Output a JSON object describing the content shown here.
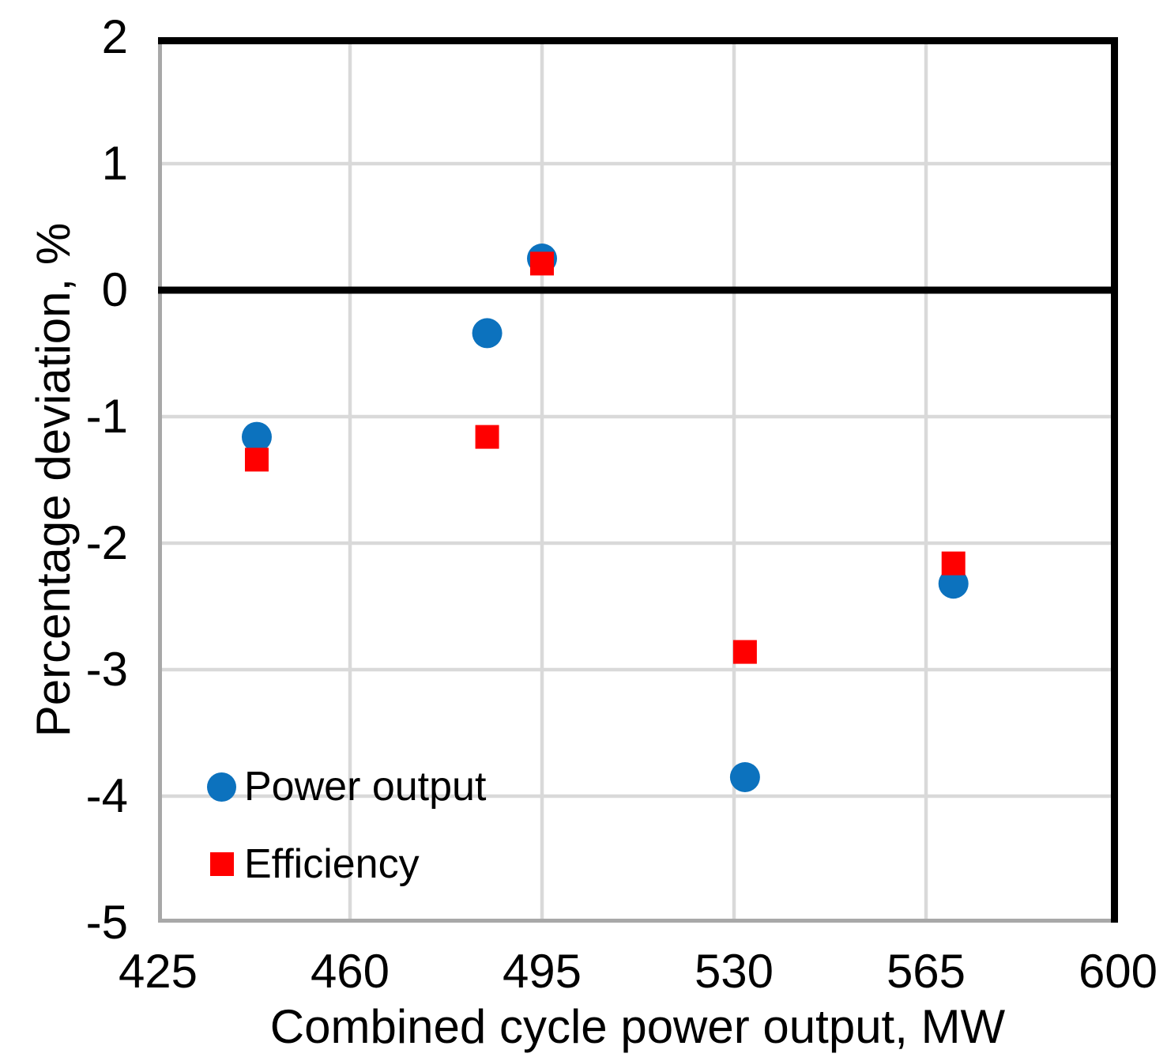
{
  "chart_data": {
    "type": "scatter",
    "title": "",
    "xlabel": "Combined cycle power output, MW",
    "ylabel": "Percentage deviation, %",
    "xlim": [
      425,
      600
    ],
    "ylim": [
      -5,
      2
    ],
    "x_ticks": [
      425,
      460,
      495,
      530,
      565,
      600
    ],
    "y_ticks": [
      2,
      1,
      0,
      -1,
      -2,
      -3,
      -4,
      -5
    ],
    "grid": true,
    "zero_line": true,
    "legend_position": "inside-bottom-left",
    "series": [
      {
        "name": "Power output",
        "marker": "circle",
        "color": "#0C72BE",
        "points": [
          [
            443,
            -1.16
          ],
          [
            485,
            -0.34
          ],
          [
            495,
            0.25
          ],
          [
            532,
            -3.85
          ],
          [
            570,
            -2.32
          ]
        ]
      },
      {
        "name": "Efficiency",
        "marker": "square",
        "color": "#FF0000",
        "points": [
          [
            443,
            -1.34
          ],
          [
            485,
            -1.16
          ],
          [
            495,
            0.21
          ],
          [
            532,
            -2.86
          ],
          [
            570,
            -2.16
          ]
        ]
      }
    ],
    "colors": {
      "gridline": "#D9D9D9",
      "axis_gray": "#A8A8A8",
      "border_black": "#000000",
      "background": "#FFFFFF"
    }
  }
}
